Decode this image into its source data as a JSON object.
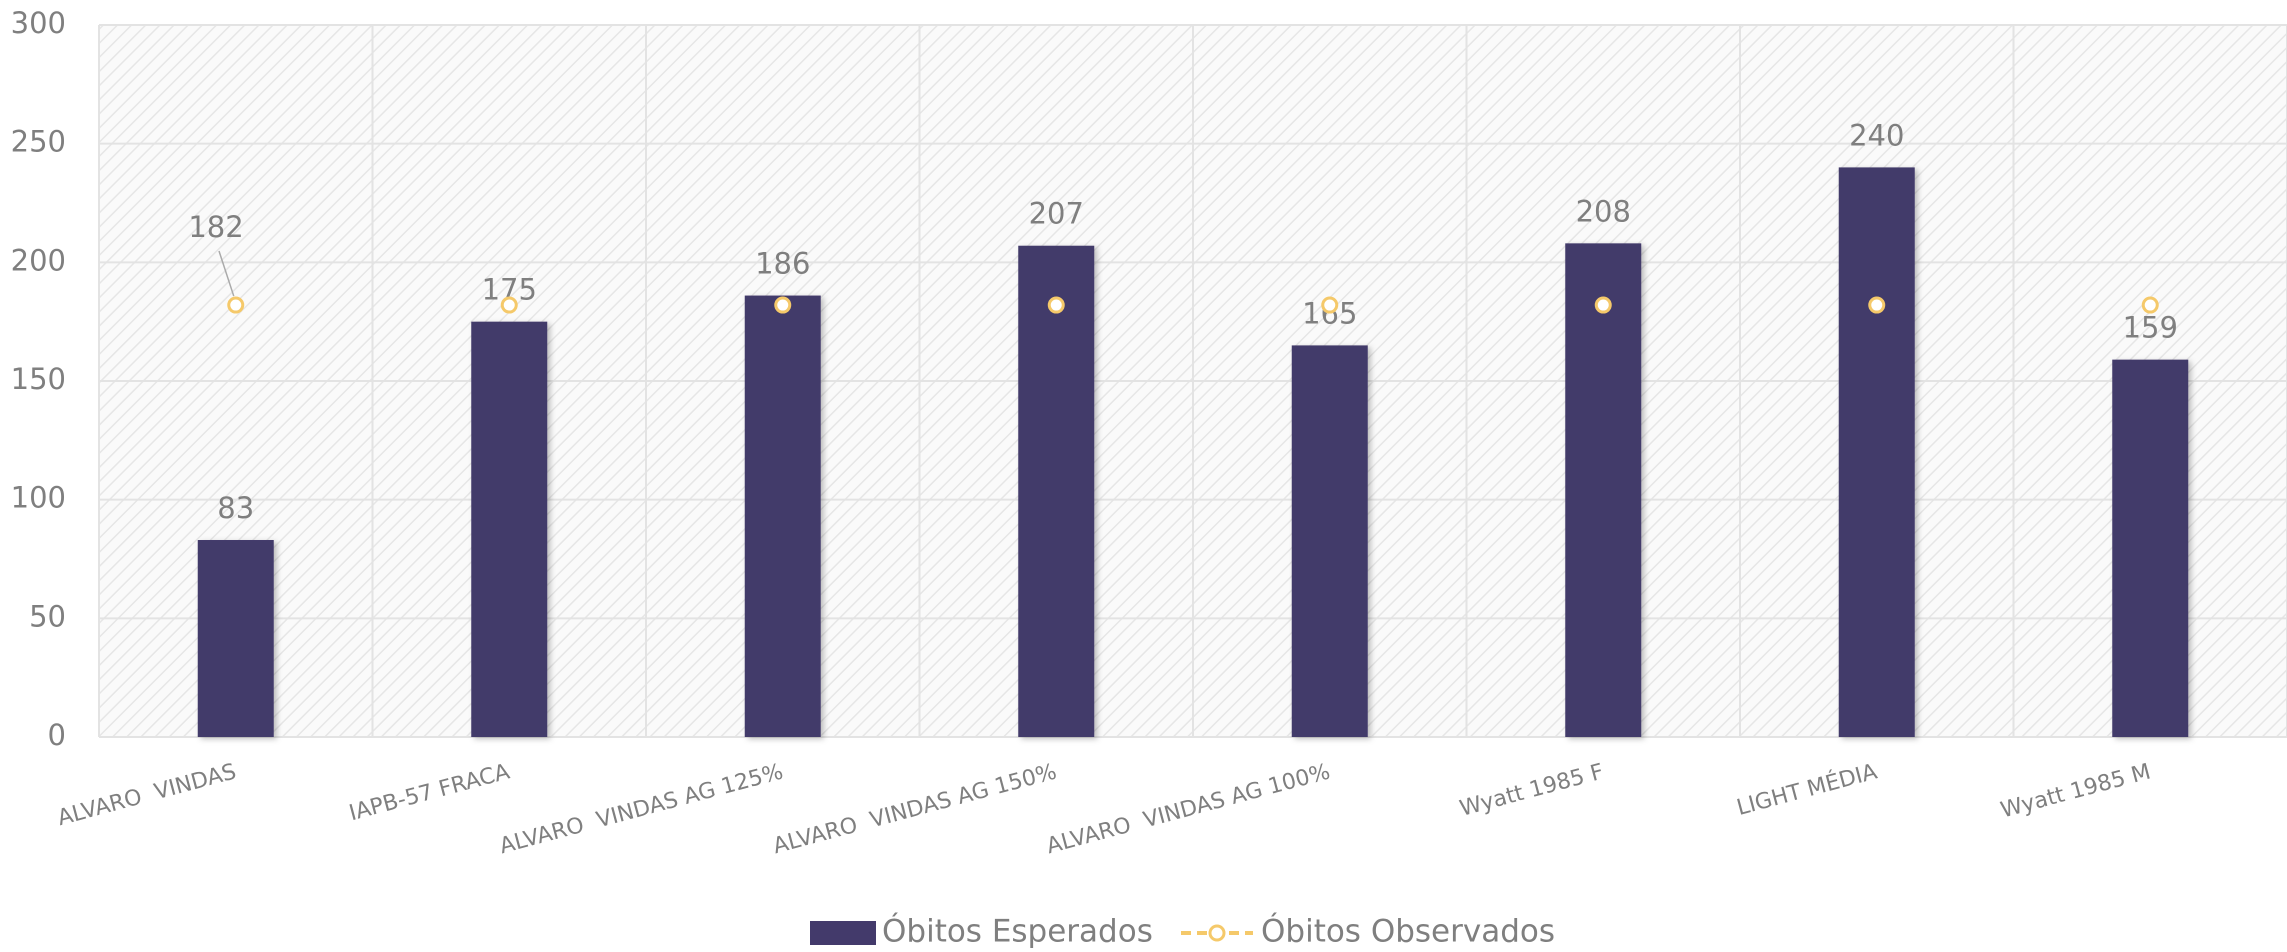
{
  "chart_data": {
    "type": "bar",
    "categories": [
      "ALVARO  VINDAS",
      "IAPB-57 FRACA",
      "ALVARO  VINDAS AG 125%",
      "ALVARO  VINDAS AG 150%",
      "ALVARO  VINDAS AG 100%",
      "Wyatt 1985 F",
      "LIGHT MÉDIA",
      "Wyatt 1985 M"
    ],
    "series": [
      {
        "name": "Óbitos Esperados",
        "type": "bar",
        "color": "#433a6b",
        "values": [
          83,
          175,
          186,
          207,
          165,
          208,
          240,
          159
        ]
      },
      {
        "name": "Óbitos Observados",
        "type": "line",
        "color": "#f5c96a",
        "values": [
          182,
          182,
          182,
          182,
          182,
          182,
          182,
          182
        ]
      }
    ],
    "ylim": [
      0,
      300
    ],
    "yticks": [
      0,
      50,
      100,
      150,
      200,
      250,
      300
    ],
    "grid": true,
    "legend": "bottom"
  }
}
